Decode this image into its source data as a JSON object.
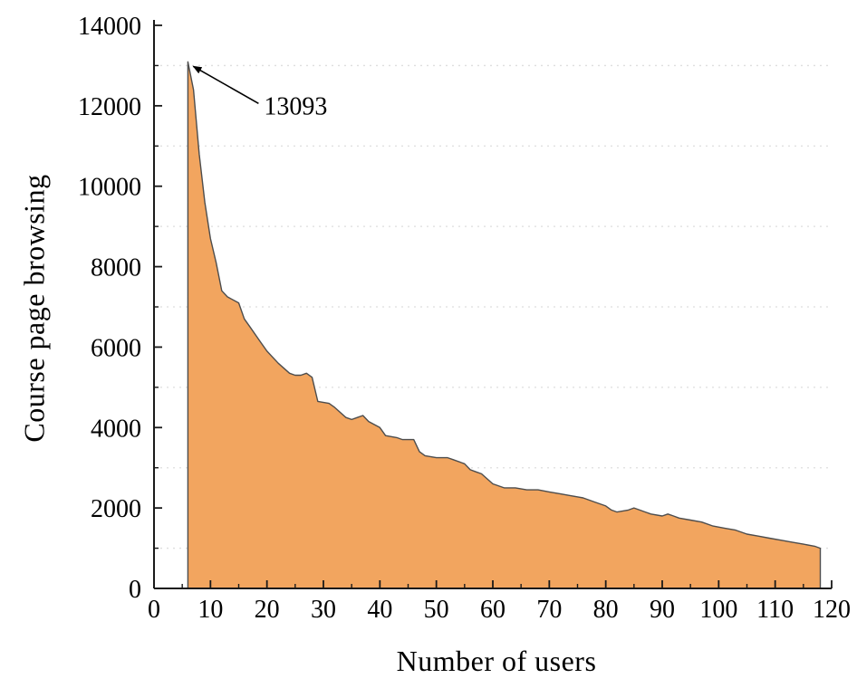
{
  "chart_data": {
    "type": "area",
    "title": "",
    "xlabel": "Number of users",
    "ylabel": "Course page browsing",
    "xlim": [
      0,
      120
    ],
    "ylim": [
      0,
      14000
    ],
    "xticks": [
      0,
      10,
      20,
      30,
      40,
      50,
      60,
      70,
      80,
      90,
      100,
      110,
      120
    ],
    "yticks": [
      0,
      2000,
      4000,
      6000,
      8000,
      10000,
      12000,
      14000
    ],
    "x_minor_ticks": [
      5,
      15,
      25,
      35,
      45,
      55,
      65,
      75,
      85,
      95,
      105,
      115
    ],
    "y_minor_gridlines": [
      1000,
      3000,
      5000,
      7000,
      9000,
      11000,
      13000
    ],
    "grid": "dotted-horizontal-minor",
    "legend": "none",
    "annotation": {
      "text": "13093",
      "target_x": 6,
      "target_y": 13093
    },
    "colors": {
      "fill": "#F2A55F",
      "outline": "#4d4d4d",
      "axis": "#1a1a1a",
      "gridline": "#dedede",
      "text": "#000000"
    },
    "series": [
      {
        "name": "Course page browsing",
        "baseline": 0,
        "x": [
          6,
          7,
          8,
          9,
          10,
          11,
          12,
          13,
          15,
          16,
          17,
          19,
          20,
          22,
          24,
          25,
          26,
          27,
          28,
          29,
          31,
          32,
          34,
          35,
          36,
          37,
          38,
          40,
          41,
          43,
          44,
          46,
          47,
          48,
          50,
          52,
          53,
          55,
          56,
          57,
          58,
          60,
          62,
          64,
          66,
          68,
          70,
          72,
          74,
          76,
          78,
          80,
          81,
          82,
          84,
          85,
          86,
          87,
          88,
          90,
          91,
          92,
          93,
          95,
          97,
          99,
          101,
          103,
          105,
          107,
          109,
          111,
          113,
          115,
          117,
          118
        ],
        "y": [
          13093,
          12400,
          10800,
          9600,
          8700,
          8100,
          7400,
          7250,
          7100,
          6700,
          6500,
          6100,
          5900,
          5600,
          5350,
          5300,
          5300,
          5350,
          5250,
          4650,
          4600,
          4500,
          4250,
          4200,
          4250,
          4300,
          4150,
          4000,
          3800,
          3750,
          3700,
          3700,
          3400,
          3300,
          3250,
          3250,
          3200,
          3100,
          2950,
          2900,
          2850,
          2600,
          2500,
          2500,
          2450,
          2450,
          2400,
          2350,
          2300,
          2250,
          2150,
          2050,
          1950,
          1900,
          1950,
          2000,
          1950,
          1900,
          1850,
          1800,
          1850,
          1800,
          1750,
          1700,
          1650,
          1550,
          1500,
          1450,
          1350,
          1300,
          1250,
          1200,
          1150,
          1100,
          1050,
          1000
        ]
      }
    ]
  }
}
